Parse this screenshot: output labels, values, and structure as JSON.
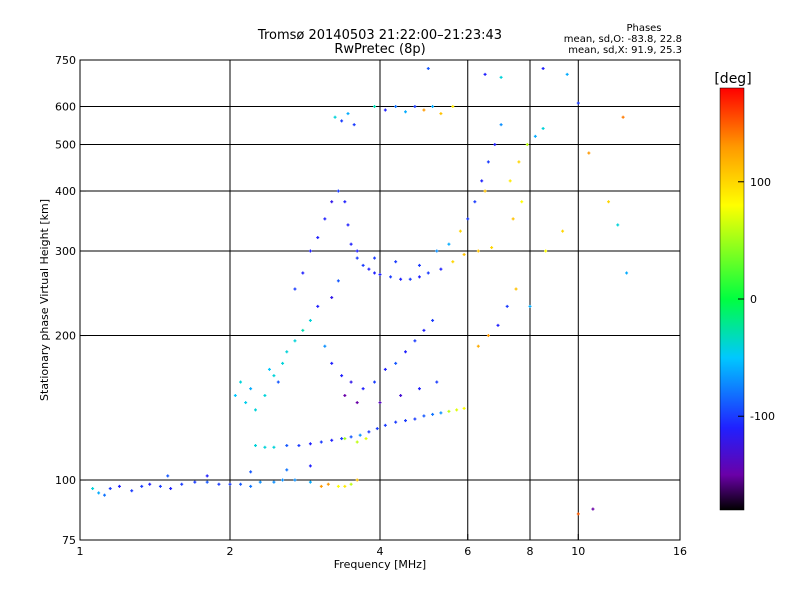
{
  "chart_data": {
    "type": "scatter",
    "title": "Tromsø 20140503 21:22:00–21:23:43",
    "subtitle": "RwPretec (8p)",
    "xlabel": "Frequency [MHz]",
    "ylabel": "Stationary phase Virtual Height [km]",
    "x_scale": "log",
    "y_scale": "log",
    "xlim": [
      1,
      16
    ],
    "ylim": [
      75,
      750
    ],
    "x_ticks": [
      1,
      2,
      4,
      6,
      8,
      10,
      16
    ],
    "y_ticks": [
      75,
      100,
      200,
      300,
      400,
      500,
      600,
      750
    ],
    "grid_x": [
      2,
      4,
      6,
      8,
      10
    ],
    "grid_y": [
      100,
      200,
      300,
      400,
      500,
      600
    ],
    "stats": {
      "heading": "Phases",
      "line_o": "mean, sd,O: -83.8, 22.8",
      "line_x": "mean, sd,X:  91.9, 25.3"
    },
    "colorbar": {
      "label": "[deg]",
      "range": [
        -180,
        180
      ],
      "ticks": [
        100,
        0,
        -100
      ],
      "stops": [
        [
          -180,
          "#000000"
        ],
        [
          -150,
          "#6a00a8"
        ],
        [
          -110,
          "#2020ff"
        ],
        [
          -50,
          "#00c8ff"
        ],
        [
          0,
          "#00ff40"
        ],
        [
          80,
          "#ffff00"
        ],
        [
          130,
          "#ff9900"
        ],
        [
          180,
          "#ff0000"
        ]
      ]
    },
    "points": [
      [
        1.06,
        96,
        -40
      ],
      [
        1.09,
        94,
        -60
      ],
      [
        1.12,
        93,
        -80
      ],
      [
        1.15,
        96,
        -100
      ],
      [
        1.2,
        97,
        -110
      ],
      [
        1.27,
        95,
        -100
      ],
      [
        1.33,
        97,
        -100
      ],
      [
        1.38,
        98,
        -110
      ],
      [
        1.45,
        97,
        -100
      ],
      [
        1.52,
        96,
        -110
      ],
      [
        1.6,
        98,
        -100
      ],
      [
        1.7,
        99,
        -100
      ],
      [
        1.8,
        99,
        -90
      ],
      [
        1.9,
        98,
        -100
      ],
      [
        2.0,
        98,
        -100
      ],
      [
        2.1,
        98,
        -90
      ],
      [
        2.2,
        97,
        -80
      ],
      [
        2.3,
        99,
        -70
      ],
      [
        2.45,
        99,
        -70
      ],
      [
        2.55,
        100,
        -70
      ],
      [
        2.7,
        100,
        -70
      ],
      [
        2.9,
        99,
        -60
      ],
      [
        3.05,
        97,
        130
      ],
      [
        3.15,
        98,
        130
      ],
      [
        3.3,
        97,
        80
      ],
      [
        3.4,
        97,
        90
      ],
      [
        3.5,
        98,
        60
      ],
      [
        3.6,
        100,
        110
      ],
      [
        1.5,
        102,
        -90
      ],
      [
        1.8,
        102,
        -110
      ],
      [
        2.2,
        104,
        -90
      ],
      [
        2.6,
        105,
        -80
      ],
      [
        2.9,
        107,
        -110
      ],
      [
        2.05,
        150,
        -50
      ],
      [
        2.15,
        145,
        -45
      ],
      [
        2.25,
        140,
        -40
      ],
      [
        2.35,
        150,
        -40
      ],
      [
        2.45,
        165,
        -40
      ],
      [
        2.55,
        175,
        -40
      ],
      [
        2.6,
        185,
        -40
      ],
      [
        2.7,
        195,
        -40
      ],
      [
        2.8,
        205,
        -30
      ],
      [
        2.9,
        215,
        -40
      ],
      [
        2.4,
        170,
        -50
      ],
      [
        2.5,
        160,
        -90
      ],
      [
        2.2,
        155,
        -60
      ],
      [
        2.1,
        160,
        -40
      ],
      [
        2.25,
        118,
        -40
      ],
      [
        2.35,
        117,
        -40
      ],
      [
        2.45,
        117,
        -40
      ],
      [
        2.6,
        118,
        -90
      ],
      [
        2.75,
        118,
        -100
      ],
      [
        2.9,
        119,
        -110
      ],
      [
        3.05,
        120,
        -100
      ],
      [
        3.2,
        121,
        -110
      ],
      [
        3.35,
        122,
        -100
      ],
      [
        3.5,
        123,
        -90
      ],
      [
        3.65,
        124,
        -70
      ],
      [
        3.8,
        126,
        -100
      ],
      [
        3.95,
        128,
        -100
      ],
      [
        4.1,
        130,
        -100
      ],
      [
        4.3,
        132,
        -100
      ],
      [
        4.5,
        133,
        -100
      ],
      [
        4.7,
        134,
        -100
      ],
      [
        4.9,
        136,
        -90
      ],
      [
        5.1,
        137,
        -80
      ],
      [
        5.3,
        138,
        -70
      ],
      [
        5.5,
        139,
        60
      ],
      [
        5.7,
        140,
        70
      ],
      [
        5.9,
        141,
        80
      ],
      [
        3.4,
        122,
        50
      ],
      [
        3.6,
        120,
        60
      ],
      [
        3.75,
        122,
        70
      ],
      [
        2.7,
        250,
        -100
      ],
      [
        2.8,
        270,
        -110
      ],
      [
        2.9,
        300,
        -110
      ],
      [
        3.0,
        320,
        -110
      ],
      [
        3.1,
        350,
        -110
      ],
      [
        3.2,
        380,
        -120
      ],
      [
        3.3,
        400,
        -100
      ],
      [
        3.4,
        380,
        -110
      ],
      [
        3.45,
        340,
        -110
      ],
      [
        3.5,
        310,
        -110
      ],
      [
        3.6,
        290,
        -100
      ],
      [
        3.7,
        280,
        -100
      ],
      [
        3.8,
        275,
        -110
      ],
      [
        3.9,
        270,
        -110
      ],
      [
        4.0,
        268,
        -110
      ],
      [
        4.2,
        265,
        -100
      ],
      [
        4.4,
        262,
        -110
      ],
      [
        4.6,
        262,
        -100
      ],
      [
        4.8,
        265,
        -110
      ],
      [
        5.0,
        270,
        -100
      ],
      [
        5.3,
        275,
        -110
      ],
      [
        5.6,
        285,
        100
      ],
      [
        5.9,
        295,
        110
      ],
      [
        6.3,
        300,
        110
      ],
      [
        6.7,
        305,
        100
      ],
      [
        3.3,
        260,
        -90
      ],
      [
        3.6,
        300,
        -110
      ],
      [
        3.9,
        290,
        -100
      ],
      [
        4.3,
        285,
        -100
      ],
      [
        4.8,
        280,
        -100
      ],
      [
        5.2,
        300,
        -70
      ],
      [
        5.5,
        310,
        -60
      ],
      [
        3.2,
        240,
        -120
      ],
      [
        3.0,
        230,
        -110
      ],
      [
        3.1,
        190,
        -70
      ],
      [
        3.2,
        175,
        -110
      ],
      [
        3.35,
        165,
        -110
      ],
      [
        3.5,
        160,
        -120
      ],
      [
        3.7,
        155,
        -110
      ],
      [
        3.9,
        160,
        -100
      ],
      [
        4.1,
        170,
        -110
      ],
      [
        4.3,
        175,
        -90
      ],
      [
        4.5,
        185,
        -110
      ],
      [
        4.7,
        195,
        -100
      ],
      [
        4.9,
        205,
        -110
      ],
      [
        5.1,
        215,
        -100
      ],
      [
        3.4,
        150,
        -150
      ],
      [
        3.6,
        145,
        -150
      ],
      [
        4.0,
        145,
        -140
      ],
      [
        4.4,
        150,
        -130
      ],
      [
        4.8,
        155,
        -110
      ],
      [
        5.2,
        160,
        -100
      ],
      [
        3.25,
        570,
        -40
      ],
      [
        3.35,
        560,
        -100
      ],
      [
        3.45,
        580,
        -60
      ],
      [
        3.55,
        550,
        -100
      ],
      [
        3.9,
        600,
        -30
      ],
      [
        4.1,
        590,
        -110
      ],
      [
        4.3,
        600,
        -80
      ],
      [
        4.5,
        585,
        -60
      ],
      [
        4.7,
        600,
        -100
      ],
      [
        4.9,
        590,
        130
      ],
      [
        5.1,
        600,
        -60
      ],
      [
        5.3,
        580,
        110
      ],
      [
        5.6,
        600,
        90
      ],
      [
        5.8,
        330,
        100
      ],
      [
        6.0,
        350,
        -100
      ],
      [
        6.2,
        380,
        -100
      ],
      [
        6.4,
        420,
        -110
      ],
      [
        6.6,
        460,
        -100
      ],
      [
        6.8,
        500,
        -110
      ],
      [
        7.0,
        550,
        -70
      ],
      [
        6.5,
        400,
        110
      ],
      [
        7.3,
        420,
        90
      ],
      [
        7.6,
        460,
        100
      ],
      [
        7.9,
        500,
        60
      ],
      [
        8.2,
        520,
        -60
      ],
      [
        8.5,
        540,
        -40
      ],
      [
        7.7,
        380,
        80
      ],
      [
        7.4,
        350,
        110
      ],
      [
        6.3,
        190,
        120
      ],
      [
        6.6,
        200,
        130
      ],
      [
        6.9,
        210,
        -110
      ],
      [
        7.2,
        230,
        -100
      ],
      [
        7.5,
        250,
        110
      ],
      [
        8.0,
        230,
        -60
      ],
      [
        8.6,
        300,
        80
      ],
      [
        9.3,
        330,
        100
      ],
      [
        10.5,
        480,
        130
      ],
      [
        12.3,
        570,
        140
      ],
      [
        11.5,
        380,
        100
      ],
      [
        12.0,
        340,
        -40
      ],
      [
        12.5,
        270,
        -60
      ],
      [
        10.0,
        85,
        150
      ],
      [
        10.7,
        87,
        -150
      ],
      [
        6.5,
        700,
        -110
      ],
      [
        7.0,
        690,
        -40
      ],
      [
        8.5,
        720,
        -110
      ],
      [
        9.5,
        700,
        -60
      ],
      [
        10.0,
        610,
        -100
      ],
      [
        5.0,
        720,
        -90
      ]
    ]
  }
}
